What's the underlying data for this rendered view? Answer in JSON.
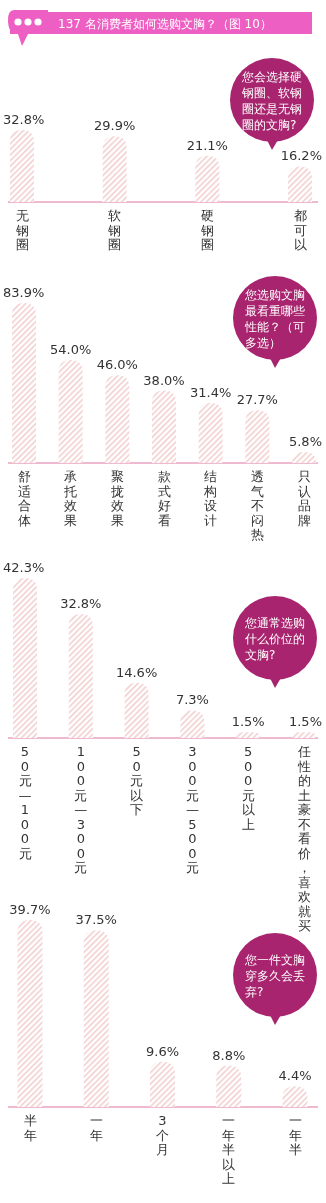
{
  "chart_data": [
    {
      "type": "bar",
      "title": "137 名消费者如何选购文胸？（图 10）",
      "subtitle": "您会选择硬钢圈、软钢圈还是无钢圈的文胸?",
      "categories": [
        "无钢圈",
        "软钢圈",
        "硬钢圈",
        "都可以"
      ],
      "values": [
        32.8,
        29.9,
        21.1,
        16.2
      ],
      "value_labels": [
        "32.8%",
        "29.9%",
        "21.1%",
        "16.2%"
      ],
      "color": "#f2cfcf"
    },
    {
      "type": "bar",
      "subtitle": "您选购文胸最看重哪些性能？（可多选）",
      "categories": [
        "舒适合体",
        "承托效果",
        "聚拢效果",
        "款式好看",
        "结构设计",
        "透气不闷热",
        "只认品牌"
      ],
      "values": [
        83.9,
        54.0,
        46.0,
        38.0,
        31.4,
        27.7,
        5.8
      ],
      "value_labels": [
        "83.9%",
        "54.0%",
        "46.0%",
        "38.0%",
        "31.4%",
        "27.7%",
        "5.8%"
      ],
      "color": "#f2cfcf"
    },
    {
      "type": "bar",
      "subtitle": "您通常选购什么价位的文胸?",
      "categories": [
        "50元—100元",
        "100元—300元",
        "50元以下",
        "300元—500元",
        "500元以上",
        "任性的土豪不看价，喜欢就买"
      ],
      "values": [
        42.3,
        32.8,
        14.6,
        7.3,
        1.5,
        1.5
      ],
      "value_labels": [
        "42.3%",
        "32.8%",
        "14.6%",
        "7.3%",
        "1.5%",
        "1.5%"
      ],
      "color": "#f2cfcf"
    },
    {
      "type": "bar",
      "subtitle": "您一件文胸穿多久会丢弃?",
      "categories": [
        "半年",
        "一年",
        "3个月",
        "一年半以上",
        "一年半"
      ],
      "values": [
        39.7,
        37.5,
        9.6,
        8.8,
        4.4
      ],
      "value_labels": [
        "39.7%",
        "37.5%",
        "9.6%",
        "8.8%",
        "4.4%"
      ],
      "color": "#f2cfcf"
    }
  ]
}
